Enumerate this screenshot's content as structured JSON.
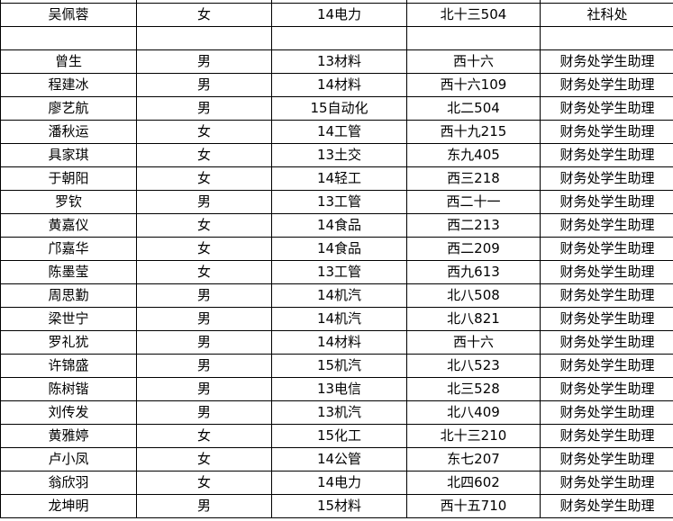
{
  "rows": [
    [
      "吴佩蓉",
      "女",
      "14电力",
      "北十三504",
      "社科处"
    ],
    [
      "",
      "",
      "",
      "",
      ""
    ],
    [
      "曾生",
      "男",
      "13材料",
      "西十六",
      "财务处学生助理"
    ],
    [
      "程建冰",
      "男",
      "14材料",
      "西十六109",
      "财务处学生助理"
    ],
    [
      "廖艺航",
      "男",
      "15自动化",
      "北二504",
      "财务处学生助理"
    ],
    [
      "潘秋运",
      "女",
      "14工管",
      "西十九215",
      "财务处学生助理"
    ],
    [
      "具家琪",
      "女",
      "13土交",
      "东九405",
      "财务处学生助理"
    ],
    [
      "于朝阳",
      "女",
      "14轻工",
      "西三218",
      "财务处学生助理"
    ],
    [
      "罗钦",
      "男",
      "13工管",
      "西二十一",
      "财务处学生助理"
    ],
    [
      "黄嘉仪",
      "女",
      "14食品",
      "西二213",
      "财务处学生助理"
    ],
    [
      "邝嘉华",
      "女",
      "14食品",
      "西二209",
      "财务处学生助理"
    ],
    [
      "陈墨莹",
      "女",
      "13工管",
      "西九613",
      "财务处学生助理"
    ],
    [
      "周思勤",
      "男",
      "14机汽",
      "北八508",
      "财务处学生助理"
    ],
    [
      "梁世宁",
      "男",
      "14机汽",
      "北八821",
      "财务处学生助理"
    ],
    [
      "罗礼犹",
      "男",
      "14材料",
      "西十六",
      "财务处学生助理"
    ],
    [
      "许锦盛",
      "男",
      "15机汽",
      "北八523",
      "财务处学生助理"
    ],
    [
      "陈树锴",
      "男",
      "13电信",
      "北三528",
      "财务处学生助理"
    ],
    [
      "刘传发",
      "男",
      "13机汽",
      "北八409",
      "财务处学生助理"
    ],
    [
      "黄雅婷",
      "女",
      "15化工",
      "北十三210",
      "财务处学生助理"
    ],
    [
      "卢小凤",
      "女",
      "14公管",
      "东七207",
      "财务处学生助理"
    ],
    [
      "翁欣羽",
      "女",
      "14电力",
      "北四602",
      "财务处学生助理"
    ],
    [
      "龙坤明",
      "男",
      "15材料",
      "西十五710",
      "财务处学生助理"
    ]
  ]
}
